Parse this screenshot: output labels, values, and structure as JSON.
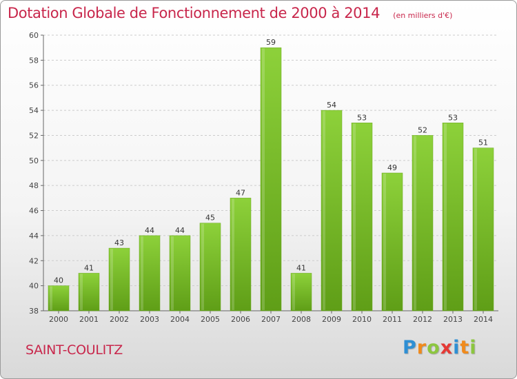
{
  "header": {
    "title": "Dotation Globale de Fonctionnement de 2000 à 2014",
    "unit": "(en milliers d'€)"
  },
  "footer": {
    "commune": "SAINT-COULITZ",
    "logo_text": "Proxiti",
    "logo_letters": [
      {
        "ch": "P",
        "color": "#2e8fd4"
      },
      {
        "ch": "r",
        "color": "#f08a1c"
      },
      {
        "ch": "o",
        "color": "#8cc63f"
      },
      {
        "ch": "x",
        "color": "#e53935"
      },
      {
        "ch": "i",
        "color": "#2e8fd4"
      },
      {
        "ch": "t",
        "color": "#f08a1c"
      },
      {
        "ch": "i",
        "color": "#8cc63f"
      }
    ]
  },
  "chart_data": {
    "type": "bar",
    "title": "Dotation Globale de Fonctionnement de 2000 à 2014",
    "subtitle": "(en milliers d'€)",
    "categories": [
      "2000",
      "2001",
      "2002",
      "2003",
      "2004",
      "2005",
      "2006",
      "2007",
      "2008",
      "2009",
      "2010",
      "2011",
      "2012",
      "2013",
      "2014"
    ],
    "values": [
      40,
      41,
      43,
      44,
      44,
      45,
      47,
      59,
      41,
      54,
      53,
      49,
      52,
      53,
      51
    ],
    "ylim": [
      38,
      60
    ],
    "yticks": [
      38,
      40,
      42,
      44,
      46,
      48,
      50,
      52,
      54,
      56,
      58,
      60
    ],
    "grid": true,
    "bar_color": "#7cbf2a",
    "bar_color_dark": "#5f9e17"
  }
}
